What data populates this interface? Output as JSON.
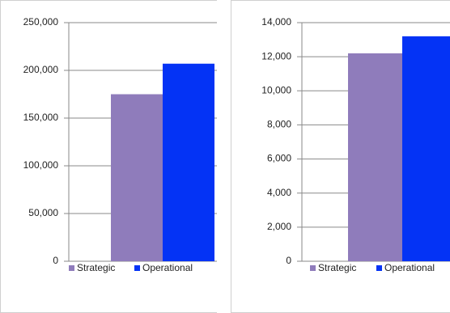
{
  "chart_data": [
    {
      "type": "bar",
      "categories": [
        null
      ],
      "series": [
        {
          "name": "Strategic",
          "color": "#8f7cbb",
          "values": [
            175000
          ]
        },
        {
          "name": "Operational",
          "color": "#0433f5",
          "values": [
            207000
          ]
        }
      ],
      "ylim": [
        0,
        250000
      ],
      "yticks": [
        0,
        {
          "value": 50000,
          "label": "50,000"
        },
        {
          "value": 100000,
          "label": "100,000"
        },
        {
          "value": 150000,
          "label": "150,000"
        },
        {
          "value": 200000,
          "label": "200,000"
        },
        {
          "value": 250000,
          "label": "250,000"
        }
      ],
      "grid": true,
      "legend": "bottom"
    },
    {
      "type": "bar",
      "categories": [
        null
      ],
      "series": [
        {
          "name": "Strategic",
          "color": "#8f7cbb",
          "values": [
            12200
          ]
        },
        {
          "name": "Operational",
          "color": "#0433f5",
          "values": [
            13200
          ]
        }
      ],
      "ylim": [
        0,
        14000
      ],
      "yticks": [
        0,
        {
          "value": 2000,
          "label": "2,000"
        },
        {
          "value": 4000,
          "label": "4,000"
        },
        {
          "value": 6000,
          "label": "6,000"
        },
        {
          "value": 8000,
          "label": "8,000"
        },
        {
          "value": 10000,
          "label": "10,000"
        },
        {
          "value": 12000,
          "label": "12,000"
        },
        {
          "value": 14000,
          "label": "14,000"
        }
      ],
      "grid": true,
      "legend": "bottom"
    }
  ]
}
